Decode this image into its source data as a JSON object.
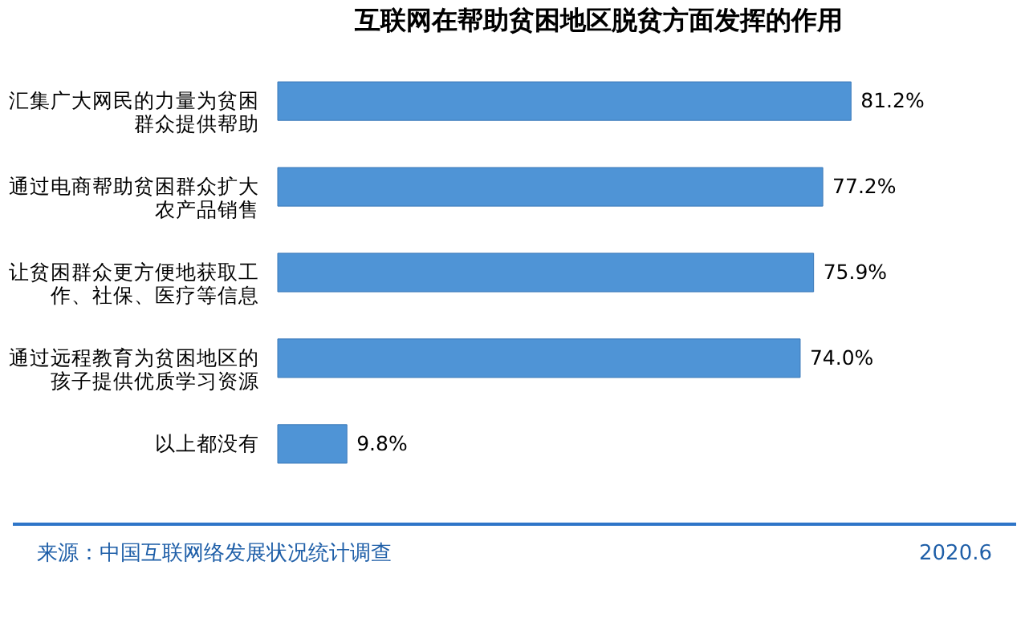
{
  "chart_data": {
    "type": "bar",
    "orientation": "horizontal",
    "title": "互联网在帮助贫困地区脱贫方面发挥的作用",
    "categories": [
      "汇集广大网民的力量为贫困群众提供帮助",
      "通过电商帮助贫困群众扩大农产品销售",
      "让贫困群众更方便地获取工作、社保、医疗等信息",
      "通过远程教育为贫困地区的孩子提供优质学习资源",
      "以上都没有"
    ],
    "values": [
      81.2,
      77.2,
      75.9,
      74.0,
      9.8
    ],
    "value_labels": [
      "81.2%",
      "77.2%",
      "75.9%",
      "74.0%",
      "9.8%"
    ],
    "color": "#4f94d6",
    "grid": false,
    "annotations": [
      "来源：中国互联网络发展状况统计调查",
      "2020.6"
    ]
  }
}
